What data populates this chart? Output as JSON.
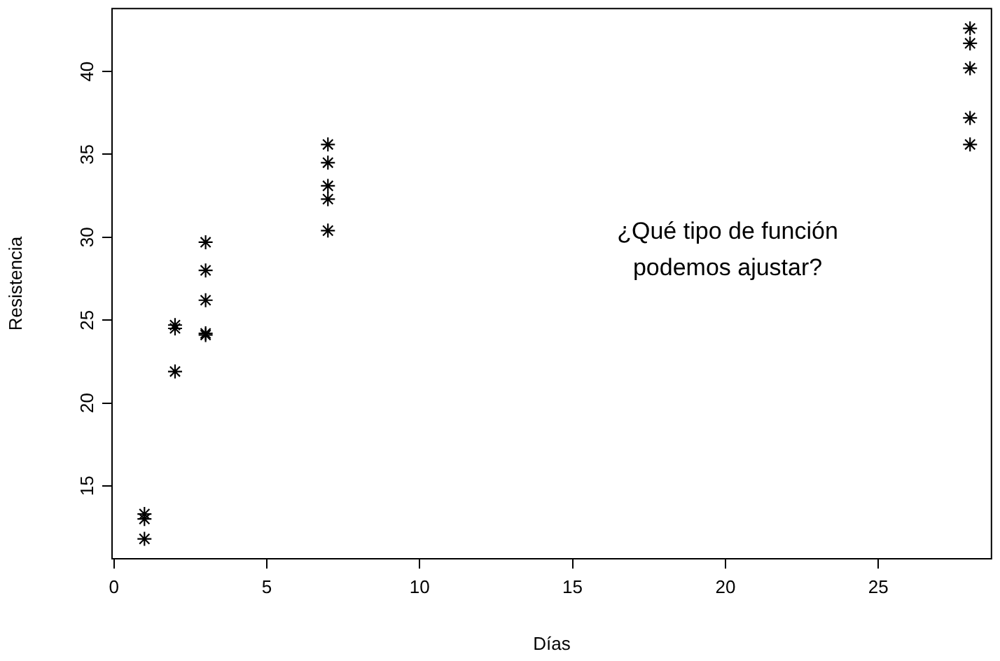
{
  "chart_data": {
    "type": "scatter",
    "xlabel": "Días",
    "ylabel": "Resistencia",
    "annotations": [
      "¿Qué tipo de función\npodemos ajustar?"
    ],
    "marker": "cross",
    "grid": false,
    "legend": false,
    "xlim": [
      -0.06,
      28.7
    ],
    "xticks": [
      0,
      5,
      10,
      15,
      20,
      25
    ],
    "ylim": [
      10.6,
      43.8
    ],
    "yticks": [
      15,
      20,
      25,
      30,
      35,
      40
    ],
    "series": [
      {
        "color": "#000000",
        "x": [
          1,
          1,
          1,
          2,
          2,
          2,
          3,
          3,
          3,
          3,
          3,
          7,
          7,
          7,
          7,
          7,
          28,
          28,
          28,
          28,
          28
        ],
        "values": [
          13.3,
          13.0,
          11.8,
          24.7,
          24.5,
          21.9,
          29.7,
          28.0,
          26.2,
          24.2,
          24.1,
          35.6,
          34.5,
          33.1,
          32.3,
          30.4,
          42.6,
          41.7,
          40.2,
          37.2,
          35.6
        ]
      }
    ]
  }
}
